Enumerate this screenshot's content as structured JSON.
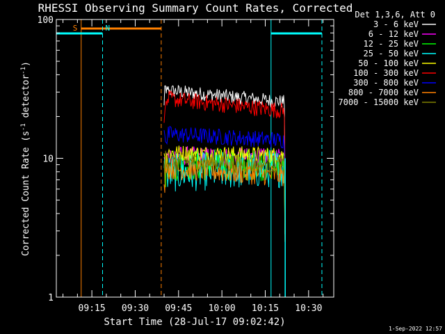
{
  "chart_data": {
    "type": "line",
    "title": "RHESSI Observing Summary Count Rates, Corrected",
    "xlabel": "Start Time (28-Jul-17 09:02:42)",
    "ylabel": "Corrected Count Rate (s",
    "ylabel_sup1": "-1",
    "ylabel_mid": " detector",
    "ylabel_sup2": "-1",
    "ylabel_end": ")",
    "y_scale": "log",
    "ylim": [
      1,
      100
    ],
    "xlim_minutes": [
      0,
      96
    ],
    "x_ticks": [
      {
        "label": "09:15",
        "min": 12.3
      },
      {
        "label": "09:30",
        "min": 27.3
      },
      {
        "label": "09:45",
        "min": 42.3
      },
      {
        "label": "10:00",
        "min": 57.3
      },
      {
        "label": "10:15",
        "min": 72.3
      },
      {
        "label": "10:30",
        "min": 87.3
      }
    ],
    "y_tick_labels": [
      {
        "label": "1",
        "v": 1
      },
      {
        "label": "10",
        "v": 10
      },
      {
        "label": "100",
        "v": 100
      }
    ],
    "legend_title": "Det 1,3,6, Att 0",
    "series": [
      {
        "name": "3 - 6 keV",
        "color": "#ffffff",
        "start": 31,
        "end": 25.5,
        "noise": 0.05
      },
      {
        "name": "6 - 12 keV",
        "color": "#ff00ff",
        "start": 10.5,
        "end": 10.0,
        "noise": 0.07
      },
      {
        "name": "12 - 25 keV",
        "color": "#00ff00",
        "start": 9.0,
        "end": 9.0,
        "noise": 0.12
      },
      {
        "name": "25 - 50 keV",
        "color": "#00ffff",
        "start": 7.8,
        "end": 8.5,
        "noise": 0.14
      },
      {
        "name": "50 - 100 keV",
        "color": "#ffff00",
        "start": 11.0,
        "end": 10.5,
        "noise": 0.06
      },
      {
        "name": "100 - 300 keV",
        "color": "#ff0000",
        "start": 27.0,
        "end": 22.0,
        "noise": 0.06
      },
      {
        "name": "300 - 800 keV",
        "color": "#0000ff",
        "start": 15.0,
        "end": 13.5,
        "noise": 0.06
      },
      {
        "name": "800 - 7000 keV",
        "color": "#ff8000",
        "start": 8.5,
        "end": 7.5,
        "noise": 0.08
      },
      {
        "name": "7000 - 15000 keV",
        "color": "#808000",
        "start": 9.5,
        "end": 9.0,
        "noise": 0.07
      }
    ],
    "data_window_minutes": [
      37.3,
      78.9
    ],
    "flags": [
      {
        "label": "S",
        "color": "#ff8000",
        "start_min": 8.6,
        "end_min": 36.3,
        "line": "solid",
        "end_line": "dashed"
      },
      {
        "label": "N",
        "color": "#00ffff",
        "start_min": 0,
        "end_min": 16.0,
        "line": "solid",
        "end_line": "dashed"
      },
      {
        "label": "",
        "color": "#00ffff",
        "start_min": 74.3,
        "end_min": 91.9,
        "line": "solid",
        "end_line": "dashed"
      }
    ],
    "timestamp": "1-Sep-2022 12:57"
  }
}
